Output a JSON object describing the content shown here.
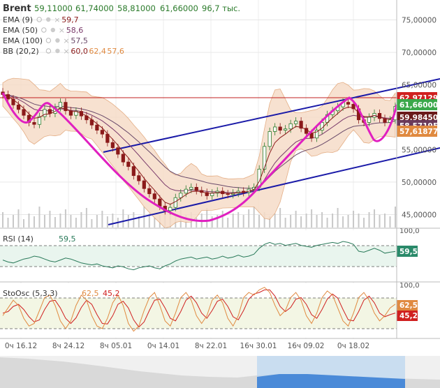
{
  "header": {
    "symbol": "Brent",
    "open": "59,11000",
    "high": "61,74000",
    "low": "58,81000",
    "close": "61,66000",
    "volume": "96,7 тыс."
  },
  "indicators": [
    {
      "name": "EMA (9)",
      "value": "59,7",
      "color": "#8b1a1a"
    },
    {
      "name": "EMA (50)",
      "value": "58,6",
      "color": "#7a3a6a"
    },
    {
      "name": "EMA (100)",
      "value": "57,5",
      "color": "#6a4a6a"
    },
    {
      "name": "BB (20,2)",
      "values": [
        "60,0",
        "62,4",
        "57,6"
      ],
      "color": "#d08040"
    }
  ],
  "price_labels": [
    {
      "text": "62,97129",
      "bg": "#d02020"
    },
    {
      "text": "61,66000",
      "bg": "#3aa84a"
    },
    {
      "text": "59,98450",
      "bg": "#6a1a1a"
    },
    {
      "text": "58,57195",
      "bg": "#6a3a5a"
    },
    {
      "text": "57,61877",
      "bg": "#e08a40"
    }
  ],
  "rsi": {
    "title": "RSI (14)",
    "value": "59,5",
    "color": "#2a7a5a"
  },
  "stoch": {
    "title": "StoOsc (5,3,3)",
    "k": "62,5",
    "d": "45,2",
    "k_color": "#e08a40",
    "d_color": "#d02020"
  },
  "chart_data": [
    {
      "type": "line",
      "title": "Brent",
      "x_ticks": [
        "0ч 16.12",
        "8ч 24.12",
        "8ч 05.01",
        "0ч 14.01",
        "8ч 22.01",
        "16ч 30.01",
        "16ч 09.02",
        "0ч 18.02"
      ],
      "y_ticks": [
        "75,00000",
        "70,00000",
        "65,00000",
        "60,00000",
        "55,00000",
        "50,00000",
        "45,00000"
      ],
      "ylim": [
        43,
        77
      ],
      "series": [
        {
          "values": [
            63.5,
            62.8,
            61.9,
            61.2,
            60.3,
            59.2,
            58.9,
            60.1,
            61.2,
            60.6,
            61.5,
            62.3,
            61.0,
            60.3,
            60.9,
            60.2,
            59.6,
            58.8,
            58.0,
            57.4,
            56.1,
            55.3,
            54.3,
            53.1,
            52.4,
            51.0,
            50.2,
            49.0,
            48.2,
            47.4,
            46.3,
            45.6,
            46.1,
            47.6,
            48.3,
            48.9,
            49.2,
            48.7,
            48.4,
            47.9,
            48.3,
            48.6,
            48.2,
            48.1,
            48.3,
            48.6,
            48.4,
            48.9,
            49.2,
            52.0,
            55.5,
            57.8,
            58.5,
            58.0,
            58.2,
            59.0,
            59.4,
            58.3,
            57.5,
            56.8,
            58.0,
            59.2,
            60.4,
            61.0,
            61.6,
            62.3,
            62.0,
            61.3,
            59.6,
            59.2,
            60.0,
            60.6,
            59.8,
            59.2,
            59.6,
            61.66
          ]
        }
      ],
      "hlines": [
        62.97
      ],
      "volume": [
        22,
        14,
        18,
        26,
        12,
        20,
        16,
        30,
        18,
        24,
        15,
        20,
        26,
        18,
        14,
        22,
        28,
        12,
        18,
        24,
        16,
        20,
        14,
        26,
        18,
        22,
        16,
        30,
        20,
        14,
        18,
        24,
        20,
        16,
        26,
        18,
        22,
        14,
        20,
        28,
        16,
        18,
        24,
        14,
        20,
        22,
        18,
        26,
        30,
        18,
        22,
        16,
        20,
        28,
        14,
        18,
        24,
        16,
        20,
        26,
        18,
        22,
        14,
        20,
        28,
        16,
        18,
        24,
        20,
        14,
        22,
        26,
        18,
        20,
        16,
        30
      ]
    },
    {
      "type": "line",
      "title": "RSI (14)",
      "y_ticks": [
        "100,0"
      ],
      "ylim": [
        0,
        100
      ],
      "series": [
        {
          "values": [
            42,
            38,
            36,
            40,
            44,
            46,
            50,
            48,
            44,
            40,
            38,
            42,
            46,
            44,
            40,
            36,
            34,
            32,
            34,
            30,
            28,
            26,
            30,
            28,
            24,
            22,
            26,
            28,
            30,
            26,
            24,
            30,
            34,
            40,
            44,
            46,
            48,
            44,
            46,
            48,
            44,
            46,
            50,
            46,
            48,
            52,
            48,
            50,
            54,
            66,
            74,
            78,
            74,
            76,
            72,
            74,
            76,
            72,
            70,
            68,
            72,
            74,
            76,
            78,
            76,
            80,
            78,
            74,
            60,
            58,
            62,
            66,
            62,
            56,
            58,
            59.5
          ]
        }
      ],
      "levels": [
        70,
        30
      ]
    },
    {
      "type": "line",
      "title": "StoOsc (5,3,3)",
      "y_ticks": [
        "100,0"
      ],
      "ylim": [
        0,
        100
      ],
      "series": [
        {
          "values": [
            40,
            55,
            70,
            60,
            35,
            20,
            25,
            50,
            75,
            80,
            60,
            30,
            15,
            30,
            60,
            80,
            70,
            40,
            20,
            15,
            35,
            65,
            80,
            60,
            25,
            10,
            20,
            50,
            75,
            85,
            60,
            30,
            20,
            45,
            75,
            85,
            70,
            40,
            25,
            40,
            70,
            80,
            65,
            35,
            20,
            40,
            75,
            85,
            80,
            90,
            95,
            85,
            60,
            40,
            50,
            75,
            85,
            70,
            40,
            25,
            45,
            75,
            88,
            80,
            55,
            30,
            20,
            45,
            75,
            85,
            70,
            45,
            30,
            40,
            55,
            62.5
          ]
        },
        {
          "values": [
            45,
            48,
            58,
            62,
            52,
            38,
            28,
            32,
            52,
            68,
            70,
            55,
            35,
            25,
            36,
            56,
            70,
            62,
            42,
            25,
            24,
            40,
            62,
            68,
            55,
            32,
            18,
            28,
            50,
            70,
            72,
            55,
            35,
            30,
            48,
            70,
            78,
            65,
            45,
            35,
            50,
            68,
            72,
            58,
            38,
            32,
            50,
            72,
            82,
            85,
            90,
            90,
            78,
            58,
            48,
            56,
            72,
            75,
            62,
            42,
            35,
            52,
            72,
            82,
            74,
            52,
            32,
            30,
            48,
            70,
            78,
            65,
            45,
            38,
            42,
            45.2
          ]
        }
      ],
      "levels": [
        80,
        20
      ]
    }
  ],
  "colors": {
    "axis_bg": "#f4f4f4",
    "grid": "#dddddd",
    "candle_up": "#2a7a2a",
    "candle_down": "#8b1a1a",
    "channel": "#1a1aa8",
    "pattern": "#e020c0",
    "bb_fill": "#f6dcc8",
    "rsi_fill": "#e9f5ee",
    "stoch_fill": "#f3f6e4"
  },
  "icons": [
    "eye-icon",
    "gear-icon",
    "close-icon"
  ]
}
